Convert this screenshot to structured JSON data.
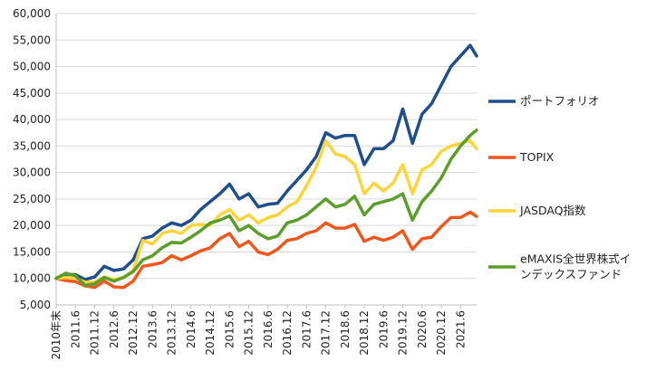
{
  "chart_data": {
    "type": "line",
    "title": "",
    "xlabel": "",
    "ylabel": "",
    "ylim": [
      5000,
      60000
    ],
    "yticks": [
      5000,
      10000,
      15000,
      20000,
      25000,
      30000,
      35000,
      40000,
      45000,
      50000,
      55000,
      60000
    ],
    "ytick_labels": [
      "5,000",
      "10,000",
      "15,000",
      "20,000",
      "25,000",
      "30,000",
      "35,000",
      "40,000",
      "45,000",
      "50,000",
      "55,000",
      "60,000"
    ],
    "x_range": [
      "2010-12",
      "2021-11"
    ],
    "xtick_labels": [
      "2010年末",
      "2011.6",
      "2011.12",
      "2012.6",
      "2012.12",
      "2013.6",
      "2013.12",
      "2014.6",
      "2014.12",
      "2015.6",
      "2015.12",
      "2016.6",
      "2016.12",
      "2017.6",
      "2017.12",
      "2018.6",
      "2018.12",
      "2019.6",
      "2019.12",
      "2020.6",
      "2020.12",
      "2021.6"
    ],
    "xtick_months": [
      "2010-12",
      "2011-06",
      "2011-12",
      "2012-06",
      "2012-12",
      "2013-06",
      "2013-12",
      "2014-06",
      "2014-12",
      "2015-06",
      "2015-12",
      "2016-06",
      "2016-12",
      "2017-06",
      "2017-12",
      "2018-06",
      "2018-12",
      "2019-06",
      "2019-12",
      "2020-06",
      "2020-12",
      "2021-06"
    ],
    "grid": true,
    "legend_position": "right",
    "series": [
      {
        "name": "ポートフォリオ",
        "color": "#1f4e8c",
        "points": [
          [
            "2010-12",
            10000
          ],
          [
            "2011-03",
            10800
          ],
          [
            "2011-06",
            10700
          ],
          [
            "2011-09",
            9800
          ],
          [
            "2011-12",
            10300
          ],
          [
            "2012-03",
            12300
          ],
          [
            "2012-06",
            11500
          ],
          [
            "2012-09",
            11800
          ],
          [
            "2012-12",
            13500
          ],
          [
            "2013-03",
            17500
          ],
          [
            "2013-06",
            18000
          ],
          [
            "2013-09",
            19500
          ],
          [
            "2013-12",
            20500
          ],
          [
            "2014-03",
            20000
          ],
          [
            "2014-06",
            21000
          ],
          [
            "2014-09",
            23000
          ],
          [
            "2014-12",
            24500
          ],
          [
            "2015-03",
            26000
          ],
          [
            "2015-06",
            27800
          ],
          [
            "2015-09",
            25000
          ],
          [
            "2015-12",
            26000
          ],
          [
            "2016-03",
            23500
          ],
          [
            "2016-06",
            24000
          ],
          [
            "2016-09",
            24200
          ],
          [
            "2016-12",
            26500
          ],
          [
            "2017-03",
            28500
          ],
          [
            "2017-06",
            30500
          ],
          [
            "2017-09",
            33000
          ],
          [
            "2017-12",
            37500
          ],
          [
            "2018-03",
            36500
          ],
          [
            "2018-06",
            37000
          ],
          [
            "2018-09",
            37000
          ],
          [
            "2018-12",
            31500
          ],
          [
            "2019-03",
            34500
          ],
          [
            "2019-06",
            34500
          ],
          [
            "2019-09",
            36000
          ],
          [
            "2019-12",
            42000
          ],
          [
            "2020-03",
            35500
          ],
          [
            "2020-06",
            41000
          ],
          [
            "2020-09",
            43000
          ],
          [
            "2020-12",
            46500
          ],
          [
            "2021-03",
            50000
          ],
          [
            "2021-06",
            52000
          ],
          [
            "2021-09",
            54000
          ],
          [
            "2021-11",
            52000
          ]
        ]
      },
      {
        "name": "TOPIX",
        "color": "#f0571f",
        "points": [
          [
            "2010-12",
            10000
          ],
          [
            "2011-03",
            9600
          ],
          [
            "2011-06",
            9400
          ],
          [
            "2011-09",
            8600
          ],
          [
            "2011-12",
            8300
          ],
          [
            "2012-03",
            9500
          ],
          [
            "2012-06",
            8400
          ],
          [
            "2012-09",
            8300
          ],
          [
            "2012-12",
            9500
          ],
          [
            "2013-03",
            12300
          ],
          [
            "2013-06",
            12600
          ],
          [
            "2013-09",
            13000
          ],
          [
            "2013-12",
            14300
          ],
          [
            "2014-03",
            13500
          ],
          [
            "2014-06",
            14300
          ],
          [
            "2014-09",
            15200
          ],
          [
            "2014-12",
            15800
          ],
          [
            "2015-03",
            17500
          ],
          [
            "2015-06",
            18500
          ],
          [
            "2015-09",
            16000
          ],
          [
            "2015-12",
            17000
          ],
          [
            "2016-03",
            15000
          ],
          [
            "2016-06",
            14500
          ],
          [
            "2016-09",
            15500
          ],
          [
            "2016-12",
            17200
          ],
          [
            "2017-03",
            17500
          ],
          [
            "2017-06",
            18500
          ],
          [
            "2017-09",
            19000
          ],
          [
            "2017-12",
            20500
          ],
          [
            "2018-03",
            19500
          ],
          [
            "2018-06",
            19500
          ],
          [
            "2018-09",
            20200
          ],
          [
            "2018-12",
            17000
          ],
          [
            "2019-03",
            17800
          ],
          [
            "2019-06",
            17200
          ],
          [
            "2019-09",
            17800
          ],
          [
            "2019-12",
            19000
          ],
          [
            "2020-03",
            15500
          ],
          [
            "2020-06",
            17500
          ],
          [
            "2020-09",
            17800
          ],
          [
            "2020-12",
            19800
          ],
          [
            "2021-03",
            21500
          ],
          [
            "2021-06",
            21500
          ],
          [
            "2021-09",
            22500
          ],
          [
            "2021-11",
            21700
          ]
        ]
      },
      {
        "name": "JASDAQ指数",
        "color": "#fdd43c",
        "points": [
          [
            "2010-12",
            10000
          ],
          [
            "2011-03",
            10200
          ],
          [
            "2011-06",
            10100
          ],
          [
            "2011-09",
            9300
          ],
          [
            "2011-12",
            9300
          ],
          [
            "2012-03",
            10300
          ],
          [
            "2012-06",
            9800
          ],
          [
            "2012-09",
            10200
          ],
          [
            "2012-12",
            11500
          ],
          [
            "2013-03",
            17200
          ],
          [
            "2013-06",
            16500
          ],
          [
            "2013-09",
            18500
          ],
          [
            "2013-12",
            19000
          ],
          [
            "2014-03",
            18500
          ],
          [
            "2014-06",
            20000
          ],
          [
            "2014-09",
            20200
          ],
          [
            "2014-12",
            20000
          ],
          [
            "2015-03",
            22000
          ],
          [
            "2015-06",
            23000
          ],
          [
            "2015-09",
            21000
          ],
          [
            "2015-12",
            22000
          ],
          [
            "2016-03",
            20500
          ],
          [
            "2016-06",
            21500
          ],
          [
            "2016-09",
            22000
          ],
          [
            "2016-12",
            23500
          ],
          [
            "2017-03",
            24500
          ],
          [
            "2017-06",
            27500
          ],
          [
            "2017-09",
            31000
          ],
          [
            "2017-12",
            36000
          ],
          [
            "2018-03",
            33500
          ],
          [
            "2018-06",
            33000
          ],
          [
            "2018-09",
            31500
          ],
          [
            "2018-12",
            26000
          ],
          [
            "2019-03",
            28000
          ],
          [
            "2019-06",
            26500
          ],
          [
            "2019-09",
            28000
          ],
          [
            "2019-12",
            31500
          ],
          [
            "2020-03",
            26000
          ],
          [
            "2020-06",
            30500
          ],
          [
            "2020-09",
            31500
          ],
          [
            "2020-12",
            34000
          ],
          [
            "2021-03",
            35000
          ],
          [
            "2021-06",
            35500
          ],
          [
            "2021-09",
            36000
          ],
          [
            "2021-11",
            34500
          ]
        ]
      },
      {
        "name": "eMAXIS全世界株式インデックスファンド",
        "name_lines": [
          "eMAXIS全世界株式イ",
          "ンデックスファンド"
        ],
        "color": "#5b9e2a",
        "points": [
          [
            "2010-12",
            10000
          ],
          [
            "2011-03",
            11000
          ],
          [
            "2011-06",
            10500
          ],
          [
            "2011-09",
            8700
          ],
          [
            "2011-12",
            9000
          ],
          [
            "2012-03",
            10200
          ],
          [
            "2012-06",
            9500
          ],
          [
            "2012-09",
            10200
          ],
          [
            "2012-12",
            11300
          ],
          [
            "2013-03",
            13500
          ],
          [
            "2013-06",
            14300
          ],
          [
            "2013-09",
            15800
          ],
          [
            "2013-12",
            16800
          ],
          [
            "2014-03",
            16700
          ],
          [
            "2014-06",
            17800
          ],
          [
            "2014-09",
            19000
          ],
          [
            "2014-12",
            20500
          ],
          [
            "2015-03",
            21000
          ],
          [
            "2015-06",
            21800
          ],
          [
            "2015-09",
            19000
          ],
          [
            "2015-12",
            20000
          ],
          [
            "2016-03",
            18500
          ],
          [
            "2016-06",
            17500
          ],
          [
            "2016-09",
            18000
          ],
          [
            "2016-12",
            20500
          ],
          [
            "2017-03",
            21000
          ],
          [
            "2017-06",
            22000
          ],
          [
            "2017-09",
            23500
          ],
          [
            "2017-12",
            25000
          ],
          [
            "2018-03",
            23500
          ],
          [
            "2018-06",
            24000
          ],
          [
            "2018-09",
            25500
          ],
          [
            "2018-12",
            22000
          ],
          [
            "2019-03",
            24000
          ],
          [
            "2019-06",
            24500
          ],
          [
            "2019-09",
            25000
          ],
          [
            "2019-12",
            26000
          ],
          [
            "2020-03",
            21000
          ],
          [
            "2020-06",
            24500
          ],
          [
            "2020-09",
            26500
          ],
          [
            "2020-12",
            29000
          ],
          [
            "2021-03",
            32500
          ],
          [
            "2021-06",
            35000
          ],
          [
            "2021-09",
            37000
          ],
          [
            "2021-11",
            38000
          ]
        ]
      }
    ]
  }
}
